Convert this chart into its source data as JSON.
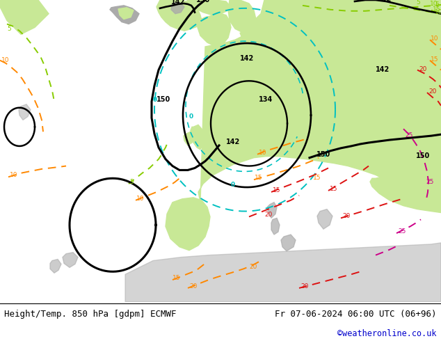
{
  "title_left": "Height/Temp. 850 hPa [gdpm] ECMWF",
  "title_right": "Fr 07-06-2024 06:00 UTC (06+96)",
  "watermark": "©weatheronline.co.uk",
  "text_color_left": "#000000",
  "text_color_right": "#000000",
  "text_color_watermark": "#0000cc",
  "figsize": [
    6.34,
    4.9
  ],
  "dpi": 100,
  "sea_color": "#d8d8d8",
  "land_green": "#c8e896",
  "land_gray": "#aaaaaa",
  "black_lw": 2.2,
  "colored_lw": 1.4,
  "label_fs": 7,
  "small_label_fs": 6.5
}
